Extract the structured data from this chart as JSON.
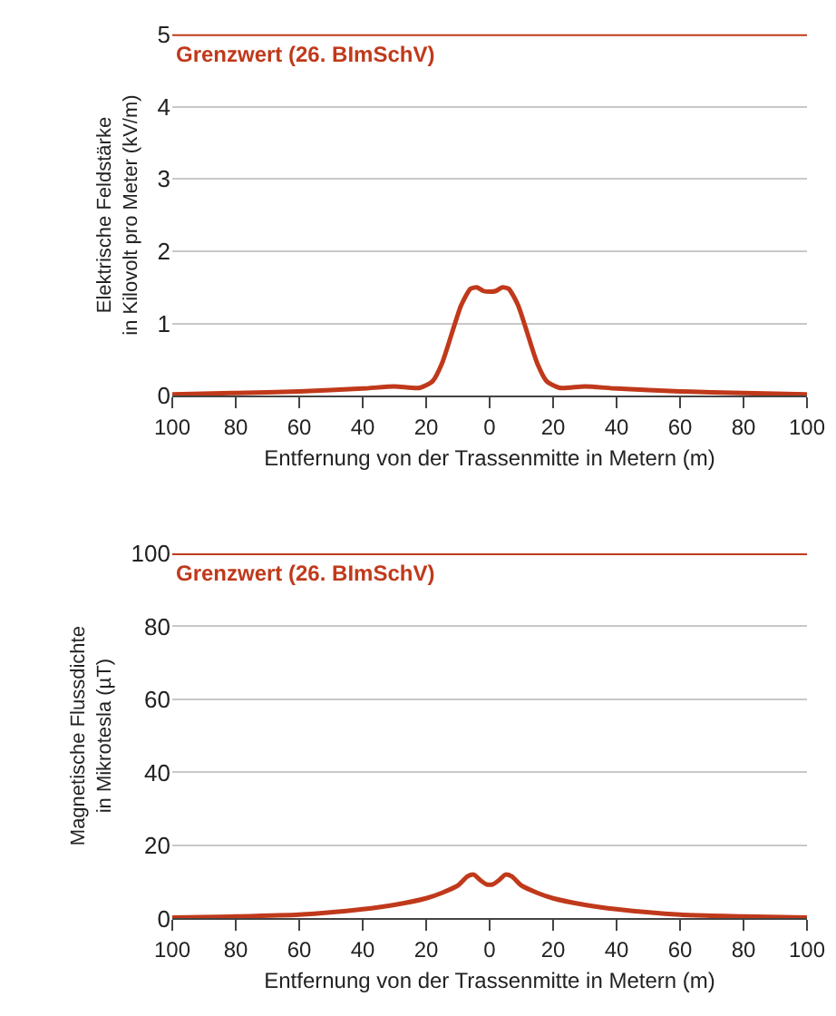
{
  "chart_data": [
    {
      "type": "line",
      "xlabel": "Entfernung von der Trassenmitte in Metern (m)",
      "ylabel": "Elektrische Feldstärke\nin Kilovolt pro Meter (kV/m)",
      "series": [
        {
          "color": "#c0391b",
          "x": [
            -100,
            -80,
            -60,
            -40,
            -30,
            -22,
            -18,
            -15,
            -12,
            -9,
            -6,
            -4,
            -2,
            0,
            2,
            4,
            6,
            9,
            12,
            15,
            18,
            22,
            30,
            40,
            60,
            80,
            100
          ],
          "values": [
            0.02,
            0.04,
            0.06,
            0.1,
            0.13,
            0.11,
            0.2,
            0.45,
            0.85,
            1.25,
            1.48,
            1.5,
            1.45,
            1.44,
            1.45,
            1.5,
            1.48,
            1.25,
            0.85,
            0.45,
            0.2,
            0.11,
            0.13,
            0.1,
            0.06,
            0.04,
            0.02
          ]
        }
      ],
      "xlim": [
        -100,
        100
      ],
      "xticks": [
        {
          "value": -100,
          "label": "100"
        },
        {
          "value": -80,
          "label": "80"
        },
        {
          "value": -60,
          "label": "60"
        },
        {
          "value": -40,
          "label": "40"
        },
        {
          "value": -20,
          "label": "20"
        },
        0,
        20,
        40,
        60,
        80,
        100
      ],
      "ylim": [
        0,
        5
      ],
      "yticks": [
        0,
        1,
        2,
        3,
        4,
        5
      ],
      "grid": "y",
      "ref_lines": [
        {
          "axis": "y",
          "value": 5,
          "label": "Grenzwert (26. BImSchV)",
          "color": "#c0391b"
        }
      ]
    },
    {
      "type": "line",
      "xlabel": "Entfernung von der Trassenmitte in Metern (m)",
      "ylabel": "Magnetische Flussdichte\nin Mikrotesla (µT)",
      "series": [
        {
          "color": "#c0391b",
          "x": [
            -100,
            -80,
            -60,
            -40,
            -30,
            -20,
            -15,
            -10,
            -7,
            -5,
            -3,
            -1,
            0,
            1,
            3,
            5,
            7,
            10,
            15,
            20,
            30,
            40,
            60,
            80,
            100
          ],
          "values": [
            0.2,
            0.5,
            1,
            2.5,
            3.7,
            5.5,
            7,
            9,
            11.5,
            12,
            10.5,
            9.3,
            9.2,
            9.3,
            10.5,
            12,
            11.5,
            9,
            7,
            5.5,
            3.7,
            2.5,
            1,
            0.5,
            0.2
          ]
        }
      ],
      "xlim": [
        -100,
        100
      ],
      "xticks": [
        {
          "value": -100,
          "label": "100"
        },
        {
          "value": -80,
          "label": "80"
        },
        {
          "value": -60,
          "label": "60"
        },
        {
          "value": -40,
          "label": "40"
        },
        {
          "value": -20,
          "label": "20"
        },
        0,
        20,
        40,
        60,
        80,
        100
      ],
      "ylim": [
        0,
        100
      ],
      "yticks": [
        0,
        20,
        40,
        60,
        80,
        100
      ],
      "grid": "y",
      "ref_lines": [
        {
          "axis": "y",
          "value": 100,
          "label": "Grenzwert (26. BImSchV)",
          "color": "#c0391b"
        }
      ]
    }
  ]
}
